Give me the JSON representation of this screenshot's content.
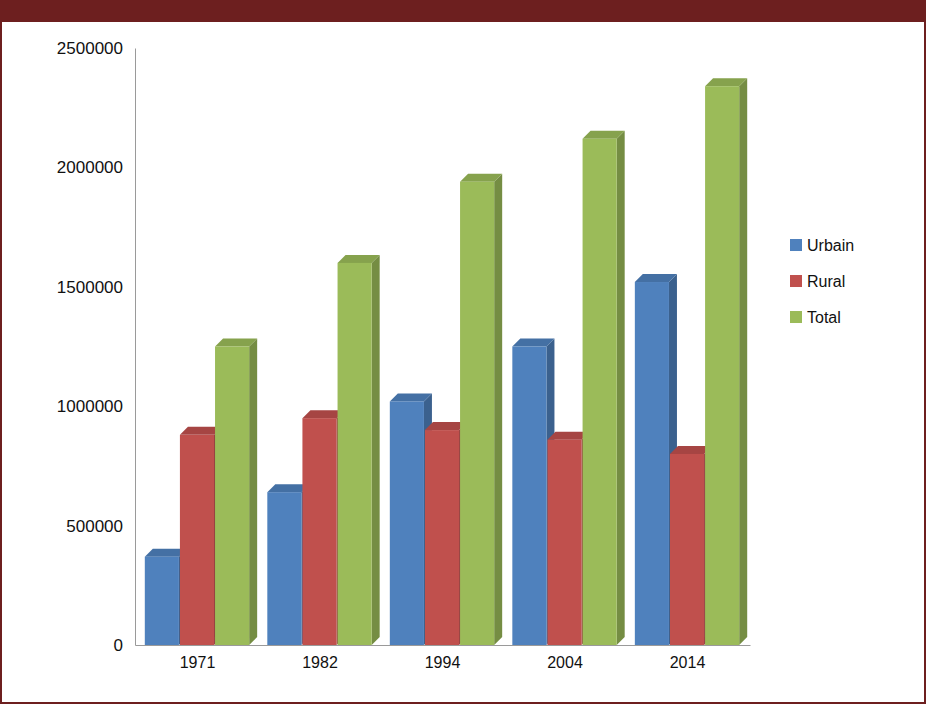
{
  "chart_data": {
    "type": "bar",
    "categories": [
      "1971",
      "1982",
      "1994",
      "2004",
      "2014"
    ],
    "series": [
      {
        "name": "Urbain",
        "color": "#4f81bd",
        "values": [
          370000,
          640000,
          1020000,
          1250000,
          1520000
        ]
      },
      {
        "name": "Rural",
        "color": "#c0504d",
        "values": [
          880000,
          950000,
          900000,
          860000,
          800000
        ]
      },
      {
        "name": "Total",
        "color": "#9bbb59",
        "values": [
          1250000,
          1600000,
          1940000,
          2120000,
          2340000
        ]
      }
    ],
    "ylim": [
      0,
      2500000
    ],
    "yticks": [
      0,
      500000,
      1000000,
      1500000,
      2000000,
      2500000
    ],
    "grid": false,
    "legend": "right"
  }
}
